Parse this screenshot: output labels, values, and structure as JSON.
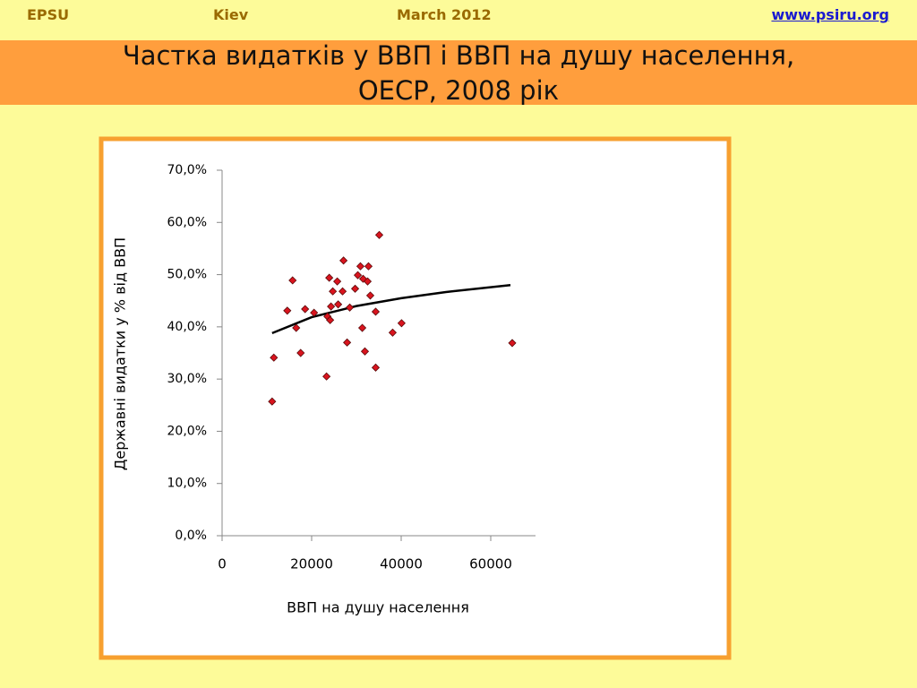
{
  "header": {
    "organization": "EPSU",
    "city": "Kiev",
    "date": "March 2012",
    "website": "www.psiru.org"
  },
  "chart_data": {
    "type": "scatter",
    "title": "Частка видатків у ВВП і ВВП на душу населення,",
    "subtitle": "ОЕСР, 2008 рік",
    "x_label": "ВВП на душу населення",
    "y_label": "Державні видатки у % від ВВП",
    "xlim": [
      0,
      70000
    ],
    "xticks": [
      0,
      20000,
      40000,
      60000
    ],
    "ylim": [
      0,
      70
    ],
    "yticks": [
      {
        "value": 0,
        "label": "0,0%"
      },
      {
        "value": 10,
        "label": "10,0%"
      },
      {
        "value": 20,
        "label": "20,0%"
      },
      {
        "value": 30,
        "label": "30,0%"
      },
      {
        "value": 40,
        "label": "40,0%"
      },
      {
        "value": 50,
        "label": "50,0%"
      },
      {
        "value": 60,
        "label": "60,0%"
      },
      {
        "value": 70,
        "label": "70,0%"
      }
    ],
    "series": [
      {
        "color": "#d9141e",
        "x": [
          11170,
          11560,
          14560,
          15750,
          16550,
          17550,
          18540,
          20540,
          23330,
          23530,
          23930,
          24130,
          24330,
          24730,
          25720,
          25920,
          26920,
          27120,
          27920,
          28510,
          29710,
          30310,
          30900,
          31310,
          31500,
          31900,
          32500,
          32700,
          33100,
          34300,
          34300,
          35100,
          38090,
          40080,
          64800
        ],
        "values": [
          25.7,
          34.1,
          43.1,
          48.9,
          39.8,
          35.0,
          43.4,
          42.7,
          30.5,
          42.0,
          49.4,
          41.3,
          43.9,
          46.8,
          48.7,
          44.3,
          46.8,
          52.7,
          37.0,
          43.7,
          47.3,
          49.9,
          51.6,
          39.8,
          49.2,
          35.3,
          48.7,
          51.6,
          46.0,
          32.2,
          42.9,
          57.6,
          38.9,
          40.7,
          36.9
        ]
      }
    ],
    "trendline": {
      "color": "#000000",
      "x": [
        11170,
        20000,
        30000,
        40000,
        50000,
        64400
      ],
      "values": [
        38.8,
        41.85,
        43.98,
        45.49,
        46.67,
        48.0
      ]
    }
  }
}
